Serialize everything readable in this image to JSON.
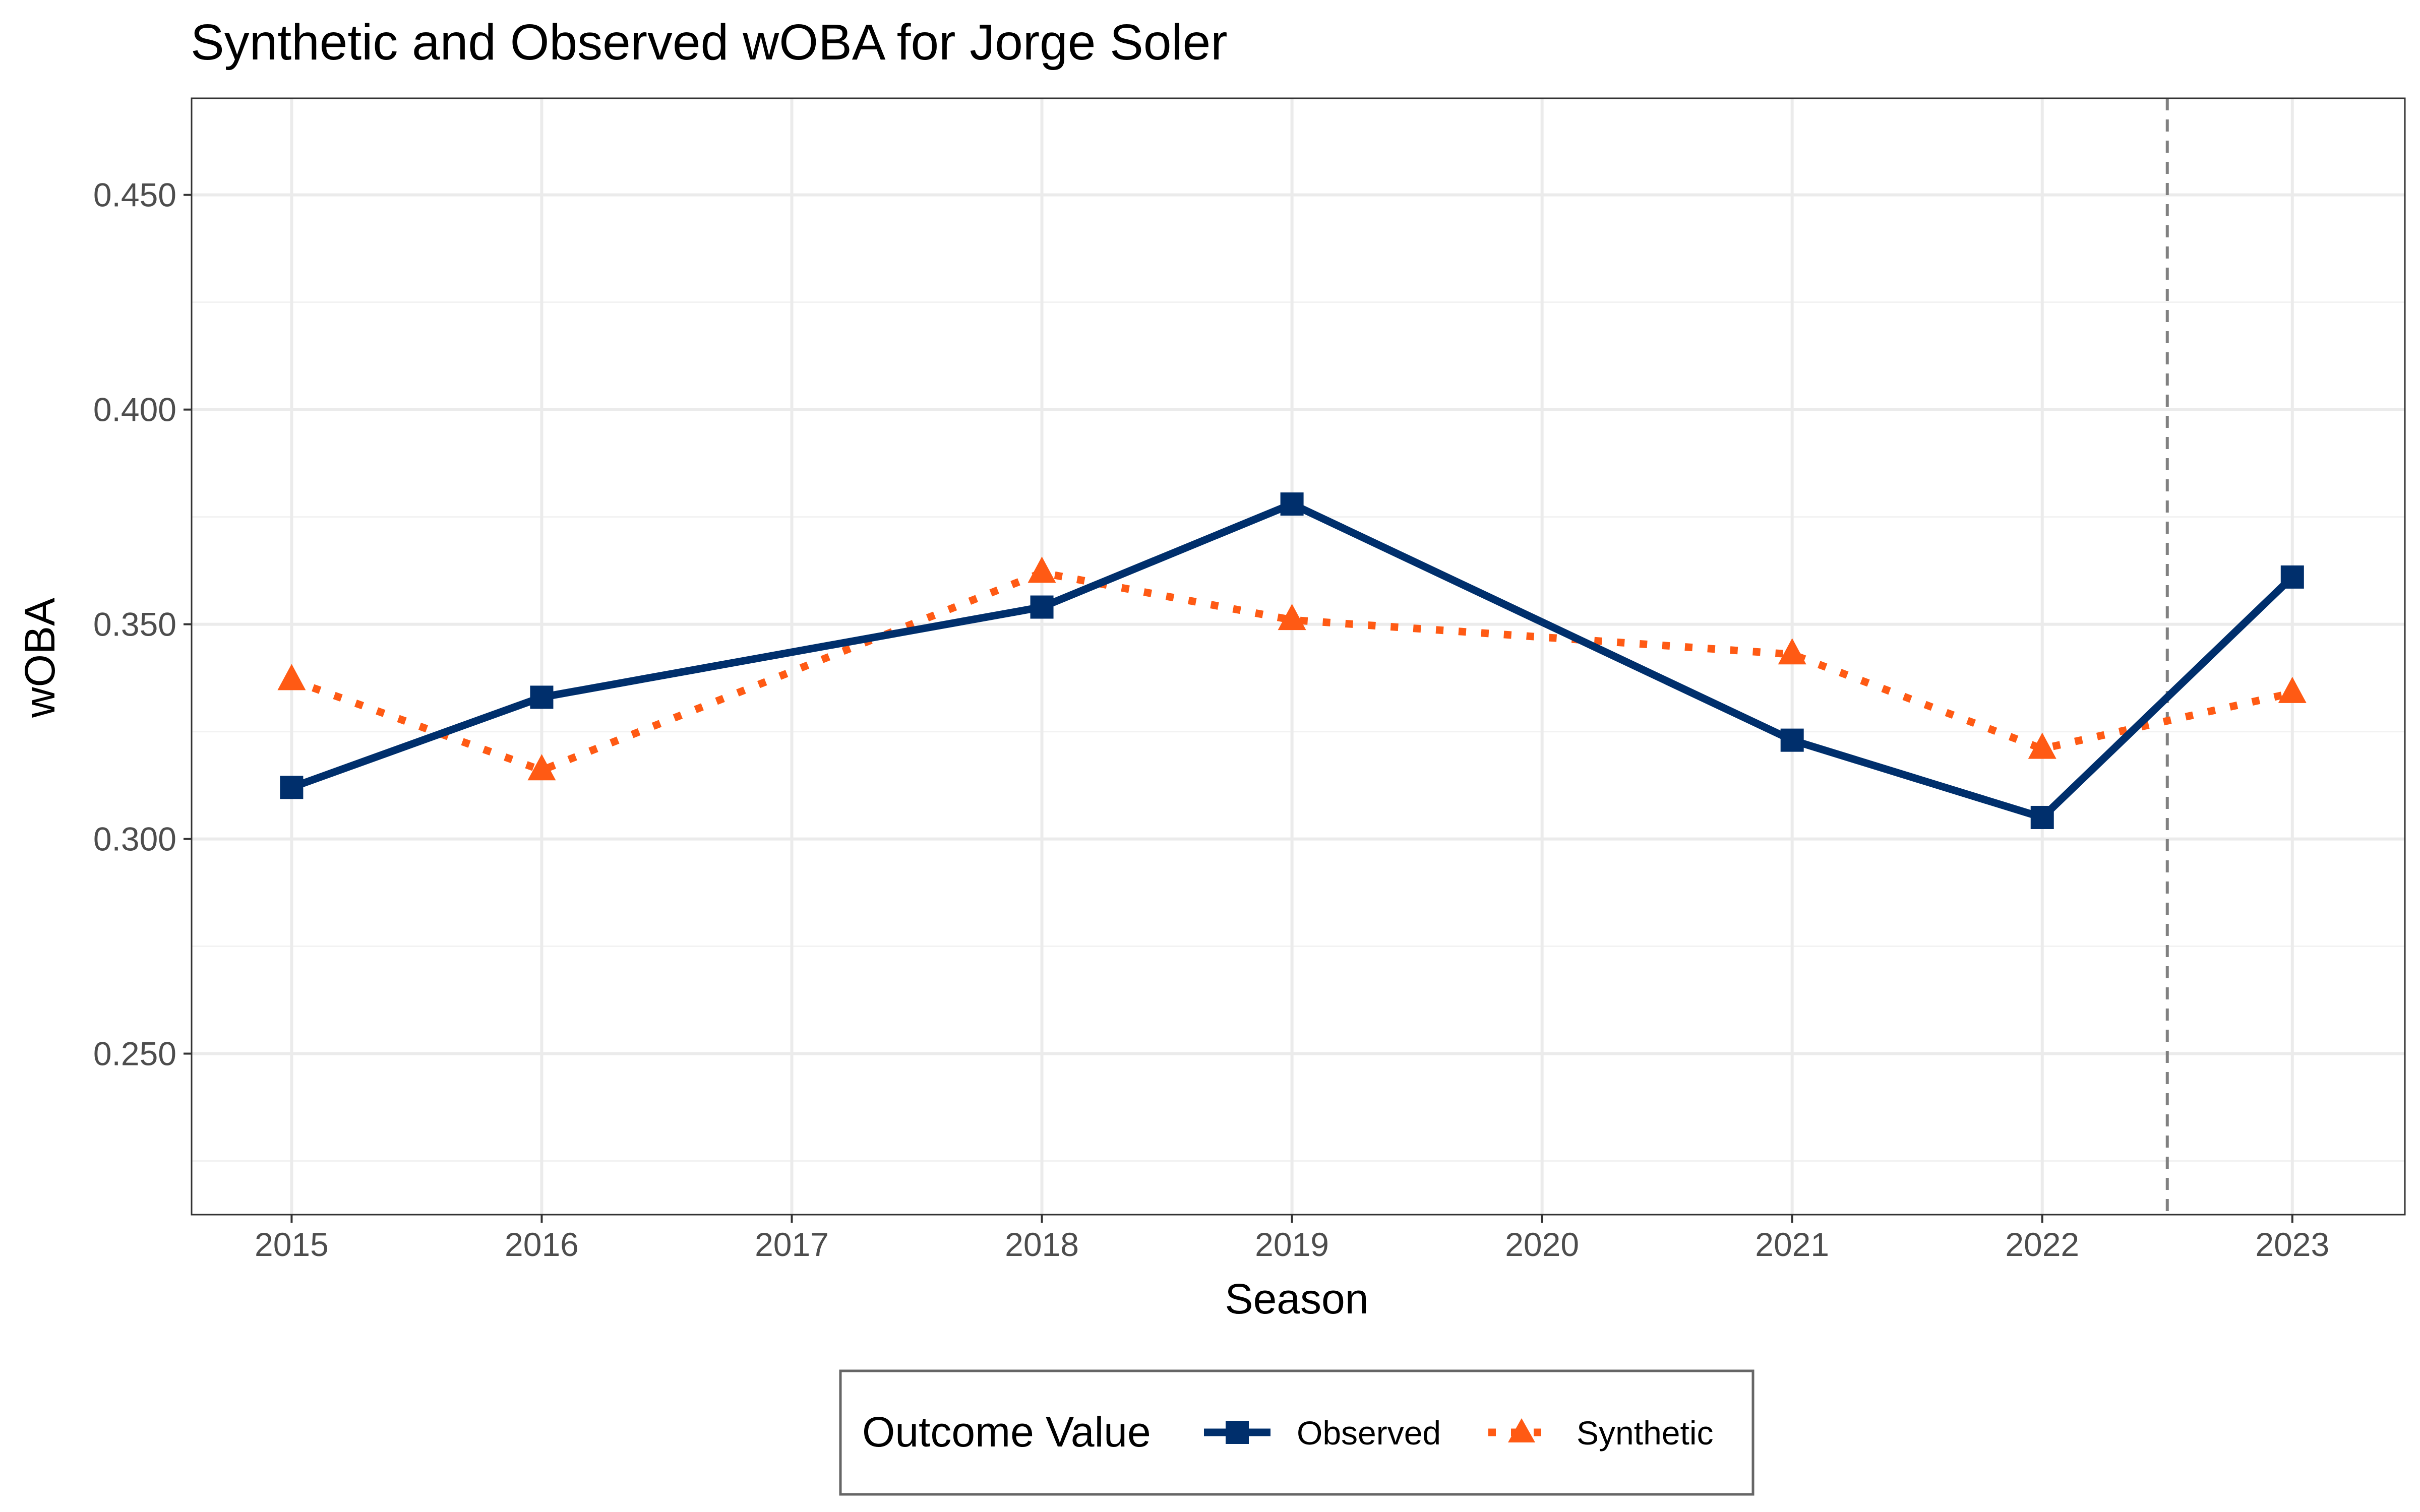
{
  "chart_data": {
    "type": "line",
    "title": "Synthetic and Observed wOBA for Jorge Soler",
    "xlabel": "Season",
    "ylabel": "wOBA",
    "x": [
      2015,
      2016,
      2017,
      2018,
      2019,
      2020,
      2021,
      2022,
      2023
    ],
    "x_ticks": [
      "2015",
      "2016",
      "2017",
      "2018",
      "2019",
      "2020",
      "2021",
      "2022",
      "2023"
    ],
    "y_ticks": [
      "0.250",
      "0.300",
      "0.350",
      "0.400",
      "0.450"
    ],
    "ylim": [
      0.2125,
      0.4725
    ],
    "xlim": [
      2014.6,
      2023.45
    ],
    "grid": true,
    "vline": {
      "x": 2022.5,
      "style": "dashed",
      "color": "#808080"
    },
    "legend": {
      "title": "Outcome Value",
      "position": "bottom"
    },
    "series": [
      {
        "name": "Observed",
        "color": "#002F6C",
        "line_style": "solid",
        "marker": "square",
        "points": [
          {
            "x": 2015,
            "y": 0.312
          },
          {
            "x": 2016,
            "y": 0.333
          },
          {
            "x": 2018,
            "y": 0.354
          },
          {
            "x": 2019,
            "y": 0.378
          },
          {
            "x": 2021,
            "y": 0.323
          },
          {
            "x": 2022,
            "y": 0.305
          },
          {
            "x": 2023,
            "y": 0.361
          }
        ]
      },
      {
        "name": "Synthetic",
        "color": "#FF5A14",
        "line_style": "dotted",
        "marker": "triangle",
        "points": [
          {
            "x": 2015,
            "y": 0.337
          },
          {
            "x": 2016,
            "y": 0.316
          },
          {
            "x": 2018,
            "y": 0.362
          },
          {
            "x": 2019,
            "y": 0.351
          },
          {
            "x": 2021,
            "y": 0.343
          },
          {
            "x": 2022,
            "y": 0.321
          },
          {
            "x": 2023,
            "y": 0.334
          }
        ]
      }
    ]
  }
}
